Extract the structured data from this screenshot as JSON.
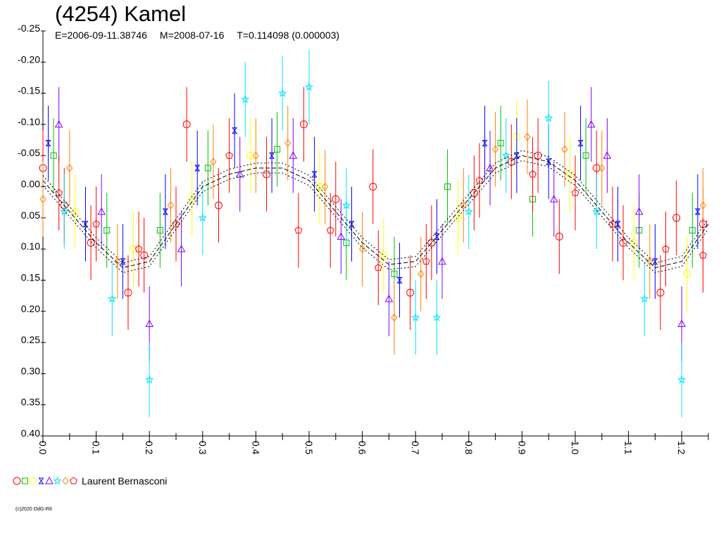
{
  "chart_data": {
    "type": "scatter",
    "title": "(4254) Kamel",
    "subtitle": {
      "epoch": "E=2006-09-11.38746",
      "mid_date": "M=2008-07-16",
      "period": "T=0.114098 (0.000003)"
    },
    "xlabel": "",
    "ylabel": "",
    "xlim": [
      0.0,
      1.25
    ],
    "ylim": [
      -0.25,
      0.4
    ],
    "y_inverted": true,
    "x_tick_labels": [
      "0.0",
      "0.1",
      "0.2",
      "0.3",
      "0.4",
      "0.5",
      "0.6",
      "0.7",
      "0.8",
      "0.9",
      "1.0",
      "1.1",
      "1.2"
    ],
    "y_tick_labels": [
      "-0.25",
      "-0.20",
      "-0.15",
      "-0.10",
      "-0.05",
      "0.00",
      "0.05",
      "0.10",
      "0.15",
      "0.20",
      "0.25",
      "0.30",
      "0.35",
      "0.40"
    ],
    "fit_curve": {
      "description": "two-harmonic lightcurve fit, dashed",
      "phase": [
        0.0,
        0.05,
        0.1,
        0.15,
        0.2,
        0.25,
        0.3,
        0.35,
        0.4,
        0.45,
        0.5,
        0.55,
        0.6,
        0.65,
        0.7,
        0.75,
        0.8,
        0.85,
        0.9,
        0.95,
        1.0
      ],
      "magnitude": [
        -0.01,
        0.04,
        0.09,
        0.13,
        0.12,
        0.06,
        0.0,
        -0.02,
        -0.03,
        -0.03,
        -0.01,
        0.04,
        0.09,
        0.125,
        0.12,
        0.07,
        0.02,
        -0.03,
        -0.05,
        -0.04,
        -0.01
      ]
    },
    "series": [
      {
        "color": "#ff0000",
        "marker": "circle",
        "phase": [
          0.0,
          0.04,
          0.09,
          0.16,
          0.19,
          0.27,
          0.33,
          0.42,
          0.49,
          0.55,
          0.62,
          0.69,
          0.73,
          0.81,
          0.88,
          0.93,
          0.97,
          1.04,
          1.09,
          1.16,
          1.19,
          1.24
        ],
        "mag": [
          -0.03,
          0.03,
          0.09,
          0.17,
          0.11,
          -0.1,
          0.03,
          -0.02,
          -0.1,
          0.02,
          0.0,
          0.17,
          0.09,
          0.01,
          -0.04,
          -0.05,
          0.08,
          -0.03,
          0.09,
          0.17,
          0.05,
          0.06
        ]
      },
      {
        "color": "#00c000",
        "marker": "square",
        "phase": [
          0.02,
          0.12,
          0.22,
          0.31,
          0.44,
          0.57,
          0.66,
          0.76,
          0.86,
          0.92,
          1.02,
          1.12,
          1.22
        ],
        "mag": [
          -0.05,
          0.07,
          0.07,
          -0.03,
          -0.06,
          0.09,
          0.14,
          0.0,
          -0.07,
          0.02,
          -0.05,
          0.07,
          0.07
        ]
      },
      {
        "color": "#ffff00",
        "marker": "circle",
        "phase": [
          0.06,
          0.17,
          0.28,
          0.39,
          0.52,
          0.64,
          0.78,
          0.89,
          0.99,
          1.11,
          1.21
        ],
        "mag": [
          0.04,
          0.1,
          0.02,
          -0.05,
          0.0,
          0.11,
          0.05,
          -0.08,
          -0.02,
          0.09,
          0.14
        ]
      },
      {
        "color": "#0000ff",
        "marker": "hourglass",
        "phase": [
          0.01,
          0.08,
          0.15,
          0.23,
          0.29,
          0.36,
          0.43,
          0.51,
          0.58,
          0.67,
          0.74,
          0.83,
          0.89,
          0.95,
          1.01,
          1.08,
          1.15,
          1.23
        ],
        "mag": [
          -0.07,
          0.06,
          0.12,
          0.04,
          -0.03,
          -0.09,
          -0.05,
          -0.02,
          0.06,
          0.15,
          0.08,
          -0.07,
          -0.05,
          -0.04,
          -0.07,
          0.06,
          0.12,
          0.04
        ]
      },
      {
        "color": "#8000ff",
        "marker": "triangle",
        "phase": [
          0.03,
          0.11,
          0.2,
          0.26,
          0.37,
          0.47,
          0.56,
          0.65,
          0.75,
          0.84,
          0.96,
          1.03,
          1.06,
          1.12,
          1.2
        ],
        "mag": [
          -0.1,
          0.04,
          0.22,
          0.1,
          -0.02,
          -0.05,
          0.08,
          0.18,
          0.12,
          -0.03,
          0.02,
          -0.1,
          -0.05,
          0.04,
          0.22
        ]
      },
      {
        "color": "#00e0ff",
        "marker": "star",
        "phase": [
          0.04,
          0.13,
          0.2,
          0.3,
          0.38,
          0.45,
          0.5,
          0.57,
          0.7,
          0.74,
          0.8,
          0.87,
          0.95,
          1.04,
          1.13,
          1.2
        ],
        "mag": [
          0.04,
          0.18,
          0.31,
          0.05,
          -0.14,
          -0.15,
          -0.16,
          0.03,
          0.21,
          0.21,
          0.04,
          -0.05,
          -0.11,
          0.04,
          0.18,
          0.31
        ]
      },
      {
        "color": "#ff8000",
        "marker": "diamond",
        "phase": [
          0.0,
          0.05,
          0.14,
          0.24,
          0.32,
          0.4,
          0.46,
          0.53,
          0.6,
          0.66,
          0.71,
          0.79,
          0.85,
          0.91,
          0.98,
          1.05,
          1.14,
          1.24
        ],
        "mag": [
          0.02,
          -0.03,
          0.12,
          0.03,
          -0.04,
          -0.05,
          -0.07,
          0.0,
          0.1,
          0.21,
          0.14,
          0.03,
          -0.06,
          -0.08,
          -0.06,
          -0.03,
          0.12,
          0.03
        ]
      },
      {
        "color": "#ff0000",
        "marker": "pentagon",
        "phase": [
          0.03,
          0.1,
          0.18,
          0.25,
          0.35,
          0.48,
          0.54,
          0.63,
          0.72,
          0.82,
          0.92,
          1.0,
          1.07,
          1.17,
          1.24
        ],
        "mag": [
          0.01,
          0.06,
          0.1,
          0.06,
          -0.05,
          0.07,
          0.07,
          0.13,
          0.12,
          -0.01,
          -0.02,
          0.01,
          0.06,
          0.1,
          0.11
        ]
      }
    ],
    "grid": false,
    "legend": {
      "position": "bottom-left",
      "label": "Laurent Bernasconi"
    }
  },
  "copyright": "(c)2020 OdG-R8"
}
